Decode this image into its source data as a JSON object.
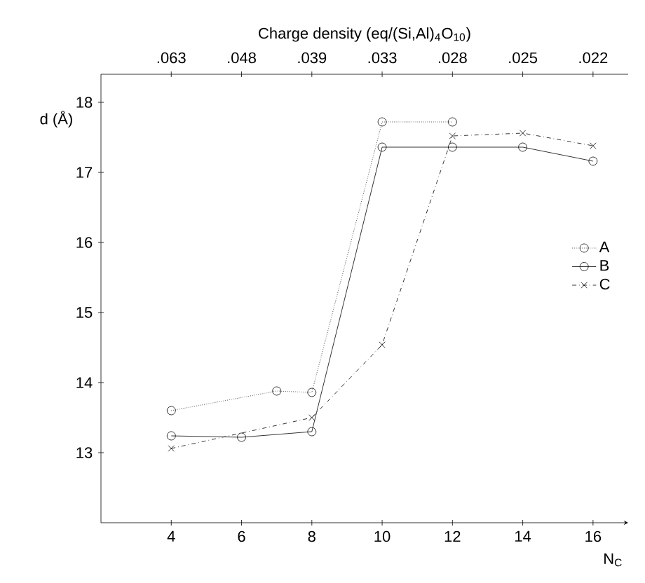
{
  "chart_data": {
    "type": "line",
    "xlabel": "N$_{C}$",
    "ylabel": "d (Å)",
    "x2label": "Charge density (eq/(Si,Al)$_{4}$O$_{10}$)",
    "xlim": [
      2,
      17
    ],
    "xticks": [
      4,
      6,
      8,
      10,
      12,
      14,
      16
    ],
    "annotations": [
      ".063",
      ".048",
      ".039",
      ".033",
      ".028",
      ".025",
      ".022"
    ],
    "ylim": [
      12,
      18.4
    ],
    "yticks": [
      13,
      14,
      15,
      16,
      17,
      18
    ],
    "legend": "right",
    "grid": false,
    "series": [
      {
        "name": "A",
        "color": "#000000",
        "marker": "circle",
        "line_style": "dotted",
        "x": [
          4,
          7,
          8,
          10,
          12
        ],
        "values": [
          13.6,
          13.88,
          13.86,
          17.72,
          17.72
        ]
      },
      {
        "name": "B",
        "color": "#000000",
        "marker": "circle",
        "line_style": "solid",
        "x": [
          4,
          6,
          8,
          10,
          12,
          14,
          16
        ],
        "values": [
          13.24,
          13.22,
          13.3,
          17.36,
          17.36,
          17.36,
          17.16
        ]
      },
      {
        "name": "C",
        "color": "#000000",
        "marker": "cross",
        "line_style": "dashed",
        "x": [
          4,
          8,
          10,
          12,
          14,
          16
        ],
        "values": [
          13.06,
          13.5,
          14.54,
          17.52,
          17.56,
          17.38
        ]
      }
    ]
  }
}
